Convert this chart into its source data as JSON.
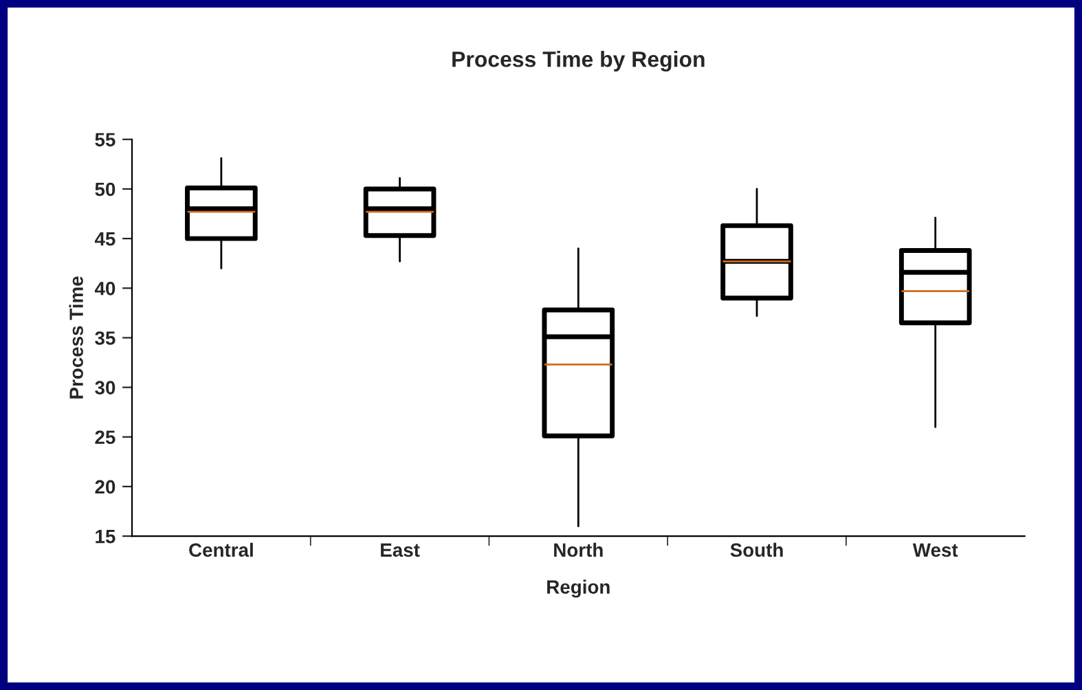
{
  "chart_data": {
    "type": "box",
    "title": "Process Time by Region",
    "xlabel": "Region",
    "ylabel": "Process Time",
    "categories": [
      "Central",
      "East",
      "North",
      "South",
      "West"
    ],
    "boxes": [
      {
        "low": 42.0,
        "q1": 45.0,
        "median": 48.0,
        "q3": 50.1,
        "high": 53.1,
        "mean": 47.7
      },
      {
        "low": 42.7,
        "q1": 45.3,
        "median": 48.0,
        "q3": 50.0,
        "high": 51.1,
        "mean": 47.7
      },
      {
        "low": 16.0,
        "q1": 25.1,
        "median": 35.1,
        "q3": 37.8,
        "high": 44.0,
        "mean": 32.3
      },
      {
        "low": 37.2,
        "q1": 39.0,
        "median": 42.7,
        "q3": 46.3,
        "high": 50.0,
        "mean": 42.7
      },
      {
        "low": 26.0,
        "q1": 36.5,
        "median": 41.6,
        "q3": 43.8,
        "high": 47.1,
        "mean": 39.7
      }
    ],
    "color": "#000000",
    "ylim": [
      15,
      55
    ],
    "yticks": [
      15,
      20,
      25,
      30,
      35,
      40,
      45,
      50,
      55
    ],
    "grid": false
  }
}
